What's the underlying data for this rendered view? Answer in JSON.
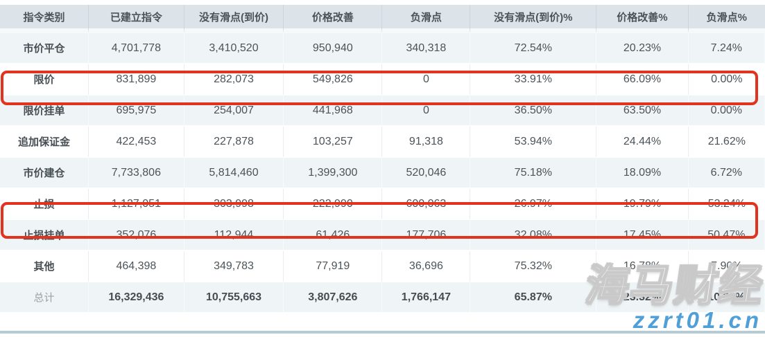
{
  "table": {
    "columns": [
      "指令类别",
      "已建立指令",
      "没有滑点(到价)",
      "价格改善",
      "负滑点",
      "没有滑点(到价)%",
      "价格改善%",
      "负滑点%"
    ],
    "rows": [
      {
        "label": "市价平仓",
        "values": [
          "4,701,778",
          "3,410,520",
          "950,940",
          "340,318",
          "72.54%",
          "20.23%",
          "7.24%"
        ],
        "highlighted": false,
        "total": false
      },
      {
        "label": "限价",
        "values": [
          "831,899",
          "282,073",
          "549,826",
          "0",
          "33.91%",
          "66.09%",
          "0.00%"
        ],
        "highlighted": true,
        "total": false
      },
      {
        "label": "限价挂单",
        "values": [
          "695,975",
          "254,007",
          "441,968",
          "0",
          "36.50%",
          "63.50%",
          "0.00%"
        ],
        "highlighted": false,
        "total": false
      },
      {
        "label": "追加保证金",
        "values": [
          "422,453",
          "227,878",
          "103,257",
          "91,318",
          "53.94%",
          "24.44%",
          "21.62%"
        ],
        "highlighted": false,
        "total": false
      },
      {
        "label": "市价建仓",
        "values": [
          "7,733,806",
          "5,814,460",
          "1,399,300",
          "520,046",
          "75.18%",
          "18.09%",
          "6.72%"
        ],
        "highlighted": false,
        "total": false
      },
      {
        "label": "止损",
        "values": [
          "1,127,051",
          "303,998",
          "222,990",
          "600,063",
          "26.97%",
          "19.79%",
          "53.24%"
        ],
        "highlighted": true,
        "total": false
      },
      {
        "label": "止损挂单",
        "values": [
          "352,076",
          "112,944",
          "61,426",
          "177,706",
          "32.08%",
          "17.45%",
          "50.47%"
        ],
        "highlighted": false,
        "total": false
      },
      {
        "label": "其他",
        "values": [
          "464,398",
          "349,783",
          "77,919",
          "36,696",
          "75.32%",
          "16.78%",
          "7.90%"
        ],
        "highlighted": false,
        "total": false
      },
      {
        "label": "总计",
        "values": [
          "16,329,436",
          "10,755,663",
          "3,807,626",
          "1,766,147",
          "65.87%",
          "23.32%",
          "10.82%"
        ],
        "highlighted": false,
        "total": true
      }
    ]
  },
  "watermark": {
    "brand": "海马财经",
    "url": "zzrt01.cn"
  },
  "colors": {
    "highlight_red": "#e2331f",
    "header_bg": "#dde4e9",
    "stripe_bg": "#eff4f6",
    "accent_blue": "#4f9fd8"
  }
}
